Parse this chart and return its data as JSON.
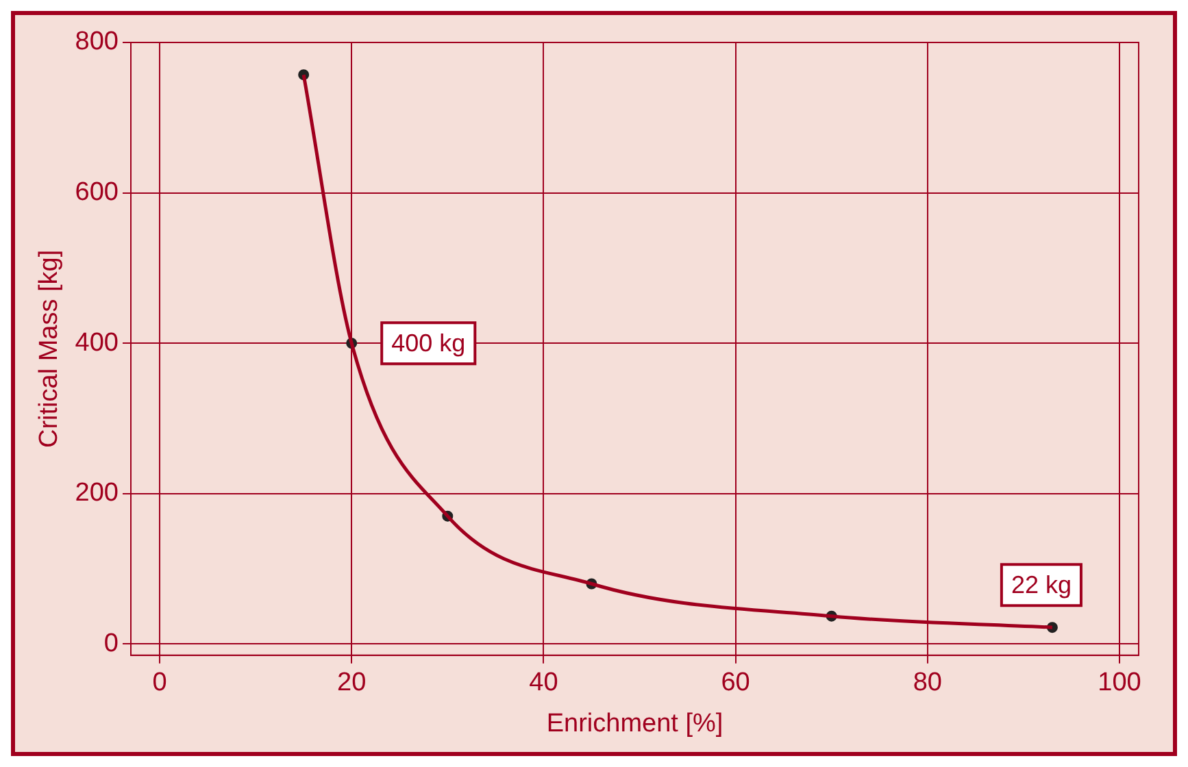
{
  "chart_data": {
    "type": "line",
    "xlabel": "Enrichment [%]",
    "ylabel": "Critical Mass [kg]",
    "xlim": [
      -3,
      102
    ],
    "xticks": [
      0,
      20,
      40,
      60,
      80,
      100
    ],
    "ylim": [
      -15,
      800
    ],
    "yticks": [
      0,
      200,
      400,
      600,
      800
    ],
    "grid": true,
    "legend": false,
    "series": [
      {
        "type": "line",
        "color": "#a0001e",
        "x": [
          15,
          20,
          30,
          45,
          70,
          93
        ],
        "values": [
          757,
          400,
          170,
          80,
          37,
          22
        ],
        "marker": "none"
      },
      {
        "type": "scatter",
        "color": "#222222",
        "x": [
          15,
          20,
          30,
          45,
          70,
          93
        ],
        "values": [
          757,
          400,
          170,
          80,
          37,
          22
        ],
        "marker": "circle"
      }
    ],
    "annotations": [
      {
        "text": "400 kg",
        "x": 20,
        "y": 400
      },
      {
        "text": "22 kg",
        "x": 93,
        "y": 22
      }
    ]
  }
}
